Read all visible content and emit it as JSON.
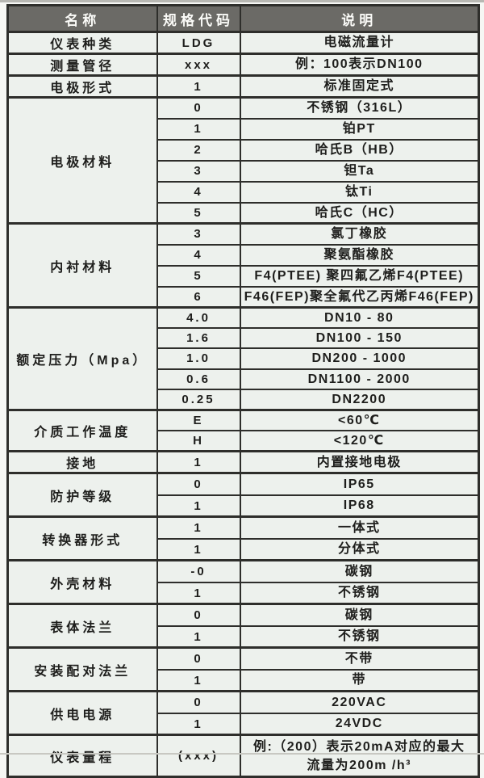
{
  "colors": {
    "header_bg": "#6b6a66",
    "header_text": "#fbfbf8",
    "cell_bg": "#edf1ed",
    "border": "#2e2e2b",
    "page_bg": "#f6f7f4"
  },
  "table": {
    "headers": [
      "名称",
      "规格代码",
      "说明"
    ],
    "groups": [
      {
        "name": "仪表种类",
        "rows": [
          {
            "code": "LDG",
            "desc": "电磁流量计"
          }
        ]
      },
      {
        "name": "测量管径",
        "rows": [
          {
            "code": "xxx",
            "desc": "例：100表示DN100"
          }
        ]
      },
      {
        "name": "电极形式",
        "rows": [
          {
            "code": "1",
            "desc": "标准固定式"
          }
        ]
      },
      {
        "name": "电极材料",
        "rows": [
          {
            "code": "0",
            "desc": "不锈钢（316L）"
          },
          {
            "code": "1",
            "desc": "铂PT"
          },
          {
            "code": "2",
            "desc": "哈氏B（HB）"
          },
          {
            "code": "3",
            "desc": "钽Ta"
          },
          {
            "code": "4",
            "desc": "钛Ti"
          },
          {
            "code": "5",
            "desc": "哈氏C（HC）"
          }
        ]
      },
      {
        "name": "内衬材料",
        "rows": [
          {
            "code": "3",
            "desc": "氯丁橡胶"
          },
          {
            "code": "4",
            "desc": "聚氨酯橡胶"
          },
          {
            "code": "5",
            "desc": "F4(PTEE) 聚四氟乙烯F4(PTEE)"
          },
          {
            "code": "6",
            "desc": "F46(FEP)聚全氟代乙丙烯F46(FEP)"
          }
        ]
      },
      {
        "name": "额定压力（Mpa）",
        "rows": [
          {
            "code": "4.0",
            "desc": "DN10 - 80"
          },
          {
            "code": "1.6",
            "desc": "DN100 - 150"
          },
          {
            "code": "1.0",
            "desc": "DN200 - 1000"
          },
          {
            "code": "0.6",
            "desc": "DN1100 - 2000"
          },
          {
            "code": "0.25",
            "desc": "DN2200"
          }
        ]
      },
      {
        "name": "介质工作温度",
        "rows": [
          {
            "code": "E",
            "desc": "<60℃"
          },
          {
            "code": "H",
            "desc": "<120℃"
          }
        ]
      },
      {
        "name": "接地",
        "rows": [
          {
            "code": "1",
            "desc": "内置接地电极"
          }
        ]
      },
      {
        "name": "防护等级",
        "rows": [
          {
            "code": "0",
            "desc": "IP65"
          },
          {
            "code": "1",
            "desc": "IP68"
          }
        ]
      },
      {
        "name": "转换器形式",
        "rows": [
          {
            "code": "1",
            "desc": "一体式"
          },
          {
            "code": "1",
            "desc": "分体式"
          }
        ]
      },
      {
        "name": "外壳材料",
        "rows": [
          {
            "code": "-0",
            "desc": "碳钢"
          },
          {
            "code": "1",
            "desc": "不锈钢"
          }
        ]
      },
      {
        "name": "表体法兰",
        "rows": [
          {
            "code": "0",
            "desc": "碳钢"
          },
          {
            "code": "1",
            "desc": "不锈钢"
          }
        ]
      },
      {
        "name": "安装配对法兰",
        "rows": [
          {
            "code": "0",
            "desc": "不带"
          },
          {
            "code": "1",
            "desc": "带"
          }
        ]
      },
      {
        "name": "供电电源",
        "rows": [
          {
            "code": "0",
            "desc": "220VAC"
          },
          {
            "code": "1",
            "desc": "24VDC"
          }
        ]
      },
      {
        "name": "仪表量程",
        "rows": [
          {
            "code": "(xxx)",
            "desc": "例:（200）表示20mA对应的最大\n流量为200m /h³"
          }
        ]
      }
    ]
  }
}
